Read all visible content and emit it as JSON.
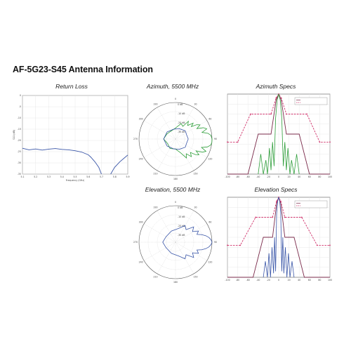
{
  "page": {
    "title": "AF-5G23-S45 Antenna Information"
  },
  "panels": {
    "return_loss": {
      "title": "Return Loss"
    },
    "azimuth_polar": {
      "title": "Azimuth, 5500 MHz"
    },
    "azimuth_specs": {
      "title": "Azimuth Specs"
    },
    "elevation_polar": {
      "title": "Elevation, 5500 MHz"
    },
    "elevation_specs": {
      "title": "Elevation Specs"
    }
  },
  "colors": {
    "trace_blue": "#3a56a8",
    "trace_green": "#2e9e3a",
    "mask_red": "#d0306a",
    "mask_dark": "#7a2a4a"
  },
  "chart_data": [
    {
      "id": "return_loss",
      "type": "line",
      "title": "Return Loss",
      "xlabel": "Frequency (GHz)",
      "ylabel": "S11 (dB)",
      "xlim": [
        5.1,
        5.9
      ],
      "ylim": [
        -35,
        0
      ],
      "x_ticks": [
        "5.1",
        "5.2",
        "5.3",
        "5.4",
        "5.5",
        "5.6",
        "5.7",
        "5.8",
        "5.9"
      ],
      "y_ticks": [
        "0",
        "-5",
        "-10",
        "-15",
        "-20",
        "-25",
        "-30",
        "-35"
      ],
      "grid": true,
      "series": [
        {
          "x": [
            5.1,
            5.15,
            5.2,
            5.25,
            5.3,
            5.35,
            5.4,
            5.45,
            5.5,
            5.55,
            5.6,
            5.62,
            5.65,
            5.68,
            5.7
          ],
          "y": [
            -23.5,
            -24.2,
            -23.8,
            -24.3,
            -23.9,
            -23.6,
            -24.0,
            -24.2,
            -24.6,
            -25.2,
            -26.4,
            -27.5,
            -29.5,
            -32,
            -35
          ]
        },
        {
          "x": [
            5.77,
            5.8,
            5.84,
            5.87,
            5.9
          ],
          "y": [
            -35,
            -32,
            -29.5,
            -28.0,
            -26.5
          ]
        }
      ]
    },
    {
      "id": "azimuth_polar",
      "type": "scatter",
      "title": "Azimuth, 5500 MHz",
      "radial_labels": [
        "0 dB",
        "-10 dB",
        "-20 dB",
        "-30 dB"
      ],
      "angle_labels": [
        "0",
        "30",
        "60",
        "90",
        "120",
        "150",
        "180",
        "210",
        "240",
        "270",
        "300",
        "330"
      ],
      "series": [
        {
          "color": "green",
          "angles_deg": [
            0,
            6,
            10,
            14,
            18,
            22,
            26,
            30,
            34,
            38,
            42,
            48,
            54,
            60,
            70,
            90,
            120,
            150,
            180,
            210,
            240,
            270,
            290,
            300,
            306,
            312,
            318,
            322,
            326,
            330,
            334,
            338,
            342,
            346,
            350,
            354,
            360
          ],
          "r_db": [
            0,
            -1,
            -4,
            -10,
            -4,
            -7,
            -14,
            -9,
            -12,
            -18,
            -14,
            -20,
            -16,
            -24,
            -22,
            -28,
            -30,
            -29,
            -27,
            -30,
            -28,
            -29,
            -24,
            -16,
            -20,
            -14,
            -18,
            -12,
            -9,
            -14,
            -7,
            -4,
            -10,
            -4,
            -1,
            0,
            0
          ]
        },
        {
          "color": "blue",
          "angles_deg": [
            0,
            20,
            40,
            70,
            100,
            140,
            180,
            220,
            260,
            290,
            320,
            340,
            360
          ],
          "r_db": [
            -26,
            -27,
            -26,
            -28,
            -29,
            -28,
            -27,
            -28,
            -29,
            -28,
            -26,
            -27,
            -26
          ]
        }
      ]
    },
    {
      "id": "azimuth_specs",
      "type": "line",
      "title": "Azimuth Specs",
      "xlim": [
        -100,
        100
      ],
      "ylim": [
        -40,
        0
      ],
      "x_ticks": [
        "-100",
        "-80",
        "-60",
        "-40",
        "-20",
        "0",
        "20",
        "40",
        "60",
        "80",
        "100"
      ],
      "legend": "top-right",
      "series": [
        {
          "color": "mask_dark",
          "x": [
            -100,
            -60,
            -40,
            -15,
            -5,
            0,
            5,
            15,
            40,
            60,
            100
          ],
          "y": [
            -40,
            -40,
            -20,
            -20,
            -3,
            0,
            -3,
            -20,
            -20,
            -40,
            -40
          ]
        },
        {
          "color": "mask_red",
          "x": [
            -100,
            -80,
            -55,
            -15,
            -5,
            0,
            5,
            15,
            55,
            80,
            100
          ],
          "y": [
            -24,
            -24,
            -10,
            -10,
            -2,
            0,
            -2,
            -10,
            -10,
            -24,
            -24
          ]
        },
        {
          "color": "trace_green",
          "x": [
            -40,
            -35,
            -30,
            -25,
            -22,
            -18,
            -15,
            -12,
            -9,
            -6,
            -3,
            0,
            3,
            6,
            9,
            12,
            15,
            18,
            22,
            25,
            30,
            35,
            40
          ],
          "y": [
            -40,
            -30,
            -40,
            -33,
            -40,
            -27,
            -38,
            -24,
            -36,
            -12,
            -3,
            0,
            -3,
            -12,
            -36,
            -24,
            -38,
            -27,
            -40,
            -33,
            -40,
            -30,
            -40
          ]
        }
      ]
    },
    {
      "id": "elevation_polar",
      "type": "scatter",
      "title": "Elevation, 5500 MHz",
      "radial_labels": [
        "0 dB",
        "-10 dB",
        "-20 dB",
        "-30 dB"
      ],
      "angle_labels": [
        "0",
        "30",
        "60",
        "90",
        "120",
        "150",
        "180",
        "210",
        "240",
        "270",
        "300",
        "330"
      ],
      "series": [
        {
          "color": "blue",
          "angles_deg": [
            0,
            4,
            8,
            12,
            16,
            20,
            26,
            32,
            40,
            50,
            60,
            80,
            110,
            150,
            180,
            210,
            250,
            280,
            300,
            310,
            320,
            328,
            334,
            340,
            344,
            348,
            352,
            356,
            360
          ],
          "r_db": [
            0,
            -1,
            -3,
            -6,
            -10,
            -15,
            -12,
            -18,
            -14,
            -22,
            -19,
            -25,
            -27,
            -28,
            -26,
            -28,
            -27,
            -25,
            -19,
            -22,
            -14,
            -18,
            -12,
            -15,
            -10,
            -6,
            -3,
            -1,
            0
          ]
        }
      ]
    },
    {
      "id": "elevation_specs",
      "type": "line",
      "title": "Elevation Specs",
      "xlim": [
        -100,
        100
      ],
      "ylim": [
        -40,
        0
      ],
      "x_ticks": [
        "-100",
        "-80",
        "-60",
        "-40",
        "-20",
        "0",
        "20",
        "40",
        "60",
        "80",
        "100"
      ],
      "legend": "top-right",
      "series": [
        {
          "color": "mask_dark",
          "x": [
            -100,
            -50,
            -30,
            -12,
            -4,
            0,
            4,
            12,
            30,
            50,
            100
          ],
          "y": [
            -40,
            -40,
            -20,
            -20,
            -3,
            0,
            -3,
            -20,
            -20,
            -40,
            -40
          ]
        },
        {
          "color": "mask_red",
          "x": [
            -100,
            -75,
            -45,
            -12,
            -4,
            0,
            4,
            12,
            45,
            75,
            100
          ],
          "y": [
            -24,
            -24,
            -10,
            -10,
            -2,
            0,
            -2,
            -10,
            -10,
            -24,
            -24
          ]
        },
        {
          "color": "trace_blue",
          "x": [
            -30,
            -26,
            -22,
            -19,
            -16,
            -13,
            -10,
            -8,
            -6,
            -4,
            -2,
            0,
            2,
            4,
            6,
            8,
            10,
            13,
            16,
            19,
            22,
            26,
            30
          ],
          "y": [
            -40,
            -32,
            -40,
            -28,
            -40,
            -25,
            -38,
            -20,
            -37,
            -8,
            -2,
            0,
            -2,
            -8,
            -37,
            -20,
            -38,
            -25,
            -40,
            -28,
            -40,
            -32,
            -40
          ]
        }
      ]
    }
  ]
}
